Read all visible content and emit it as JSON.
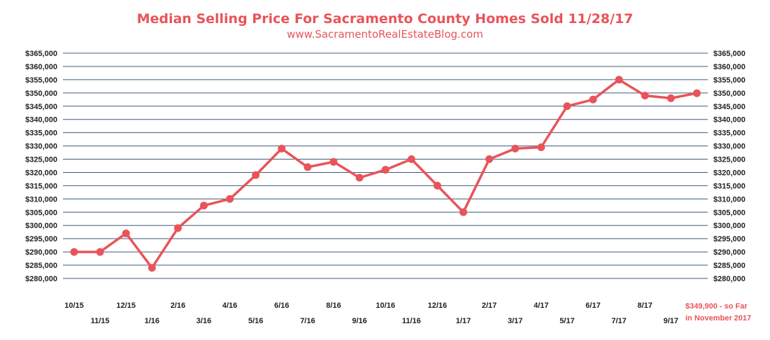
{
  "colors": {
    "accent": "#e8545a",
    "grid": "#3f5b7a",
    "text": "#222222"
  },
  "chart_data": {
    "type": "line",
    "title": "Median Selling Price For Sacramento County Homes Sold 11/28/17",
    "subtitle": "www.SacramentoRealEstateBlog.com",
    "xlabel": "",
    "ylabel": "",
    "ylim": [
      280000,
      365000
    ],
    "grid": true,
    "y_ticks": [
      "$365,000",
      "$360,000",
      "$355,000",
      "$350,000",
      "$345,000",
      "$340,000",
      "$335,000",
      "$330,000",
      "$325,000",
      "$320,000",
      "$315,000",
      "$310,000",
      "$305,000",
      "$300,000",
      "$295,000",
      "$290,000",
      "$285,000",
      "$280,000"
    ],
    "categories": [
      "10/15",
      "11/15",
      "12/15",
      "1/16",
      "2/16",
      "3/16",
      "4/16",
      "5/16",
      "6/16",
      "7/16",
      "8/16",
      "9/16",
      "10/16",
      "11/16",
      "12/16",
      "1/17",
      "2/17",
      "3/17",
      "4/17",
      "5/17",
      "6/17",
      "7/17",
      "8/17",
      "9/17",
      "11/17"
    ],
    "series": [
      {
        "name": "",
        "values": [
          290000,
          290000,
          297000,
          284000,
          299000,
          307500,
          310000,
          319000,
          329000,
          322000,
          324000,
          318000,
          321000,
          325000,
          315000,
          305000,
          325000,
          329000,
          329500,
          345000,
          347500,
          355000,
          349000,
          348000,
          349900
        ]
      }
    ],
    "annotation": [
      "$349,900 - so Far",
      "in November 2017"
    ]
  }
}
